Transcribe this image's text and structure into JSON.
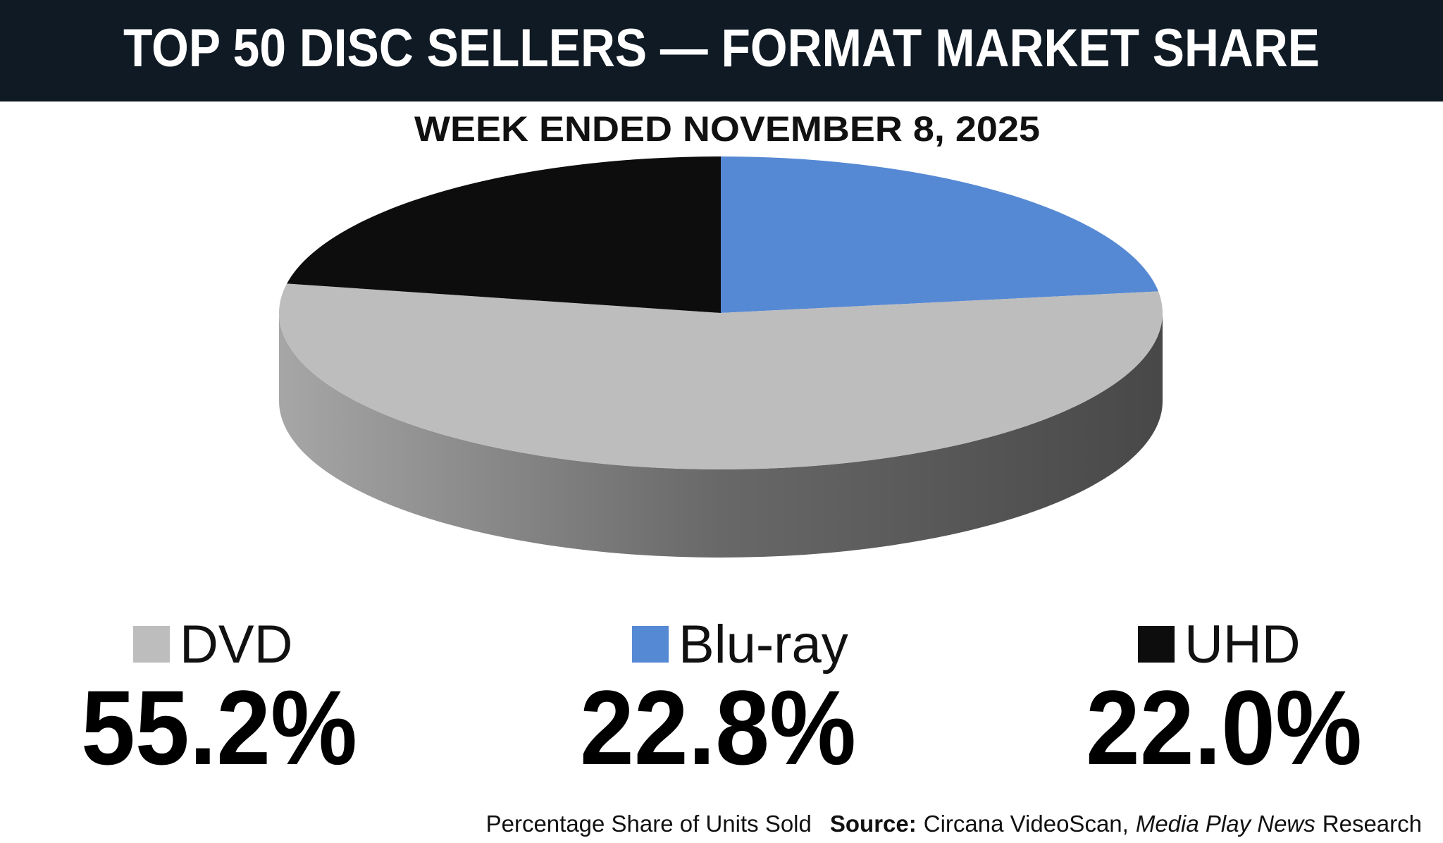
{
  "chart_data": {
    "type": "pie",
    "title": "TOP 50 DISC SELLERS — FORMAT MARKET SHARE",
    "subtitle": "WEEK ENDED NOVEMBER 8, 2025",
    "categories": [
      "Blu-ray",
      "DVD",
      "UHD"
    ],
    "values": [
      22.8,
      55.2,
      22.0
    ],
    "value_labels": [
      "22.8%",
      "55.2%",
      "22.0%"
    ],
    "colors": [
      "#5689d4",
      "#bdbdbd",
      "#0d0d0d"
    ],
    "footnote": "Percentage Share of Units Sold",
    "source_label": "Source:",
    "source_parts": [
      "Circana VideoScan,",
      "Media Play News",
      "Research"
    ]
  }
}
